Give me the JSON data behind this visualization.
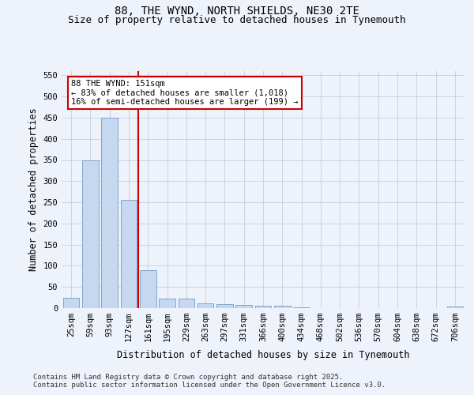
{
  "title_line1": "88, THE WYND, NORTH SHIELDS, NE30 2TE",
  "title_line2": "Size of property relative to detached houses in Tynemouth",
  "xlabel": "Distribution of detached houses by size in Tynemouth",
  "ylabel": "Number of detached properties",
  "categories": [
    "25sqm",
    "59sqm",
    "93sqm",
    "127sqm",
    "161sqm",
    "195sqm",
    "229sqm",
    "263sqm",
    "297sqm",
    "331sqm",
    "366sqm",
    "400sqm",
    "434sqm",
    "468sqm",
    "502sqm",
    "536sqm",
    "570sqm",
    "604sqm",
    "638sqm",
    "672sqm",
    "706sqm"
  ],
  "values": [
    25,
    350,
    450,
    255,
    90,
    22,
    22,
    12,
    10,
    7,
    5,
    5,
    1,
    0,
    0,
    0,
    0,
    0,
    0,
    0,
    3
  ],
  "bar_color": "#c5d8f0",
  "bar_edge_color": "#5a8fc2",
  "vline_x_index": 4,
  "vline_color": "#cc0000",
  "annotation_text": "88 THE WYND: 151sqm\n← 83% of detached houses are smaller (1,018)\n16% of semi-detached houses are larger (199) →",
  "annotation_box_color": "#ffffff",
  "annotation_box_edge_color": "#cc0000",
  "ylim": [
    0,
    560
  ],
  "yticks": [
    0,
    50,
    100,
    150,
    200,
    250,
    300,
    350,
    400,
    450,
    500,
    550
  ],
  "footer_line1": "Contains HM Land Registry data © Crown copyright and database right 2025.",
  "footer_line2": "Contains public sector information licensed under the Open Government Licence v3.0.",
  "background_color": "#eef2fa",
  "plot_background_color": "#eef2fa",
  "grid_color": "#c8cce0",
  "title_fontsize": 10,
  "subtitle_fontsize": 9,
  "axis_label_fontsize": 8.5,
  "tick_fontsize": 7.5,
  "footer_fontsize": 6.5,
  "annotation_fontsize": 7.5
}
